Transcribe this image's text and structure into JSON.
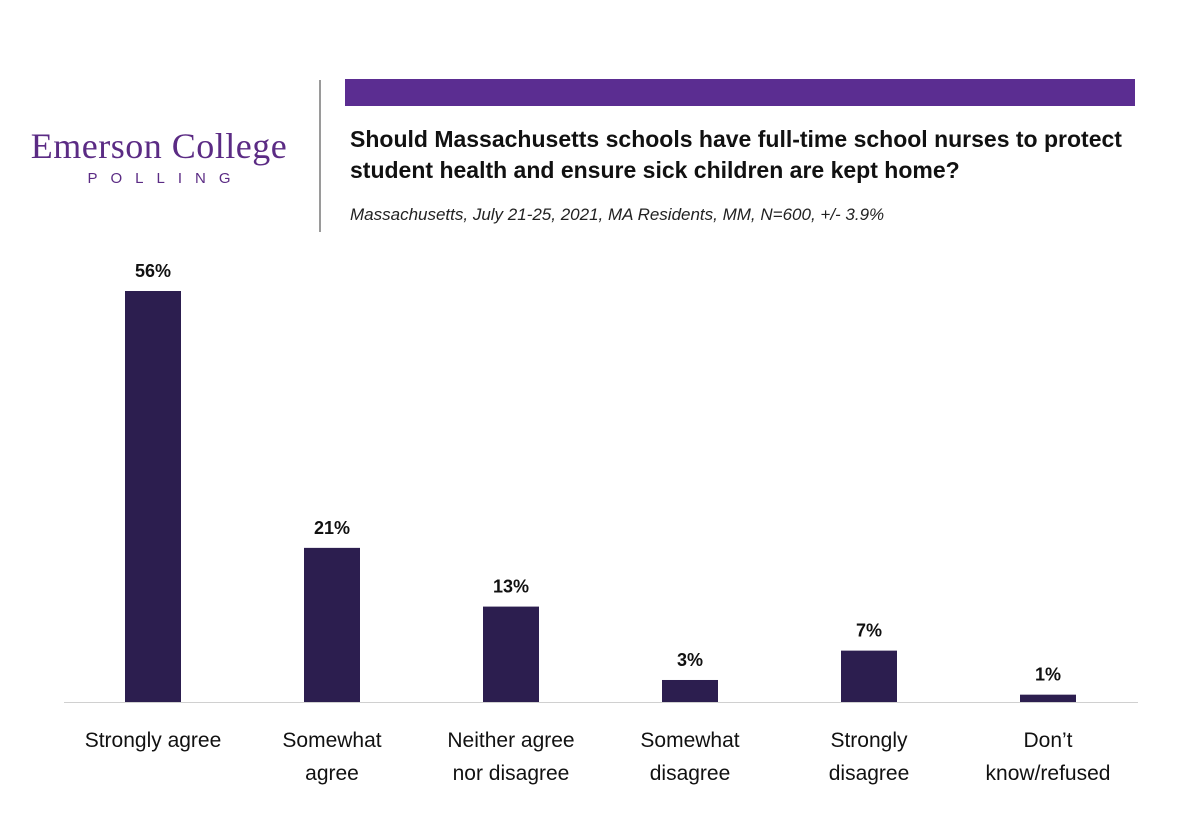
{
  "logo": {
    "name": "Emerson College",
    "sub": "POLLING"
  },
  "header": {
    "title": "Should Massachusetts schools have full-time school nurses to protect student health and ensure sick children are kept home?",
    "subtitle": "Massachusetts, July 21-25, 2021, MA Residents, MM, N=600, +/- 3.9%"
  },
  "colors": {
    "bar": "#2c1e4f",
    "accent": "#5b2d91",
    "logo": "#5b2b84"
  },
  "chart_data": {
    "type": "bar",
    "categories": [
      [
        "Strongly agree"
      ],
      [
        "Somewhat",
        "agree"
      ],
      [
        "Neither agree",
        "nor disagree"
      ],
      [
        "Somewhat",
        "disagree"
      ],
      [
        "Strongly",
        "disagree"
      ],
      [
        "Don’t",
        "know/refused"
      ]
    ],
    "values": [
      56,
      21,
      13,
      3,
      7,
      1
    ],
    "value_labels": [
      "56%",
      "21%",
      "13%",
      "3%",
      "7%",
      "1%"
    ],
    "ylim": [
      0,
      56
    ],
    "grid": false,
    "legend": "none"
  }
}
